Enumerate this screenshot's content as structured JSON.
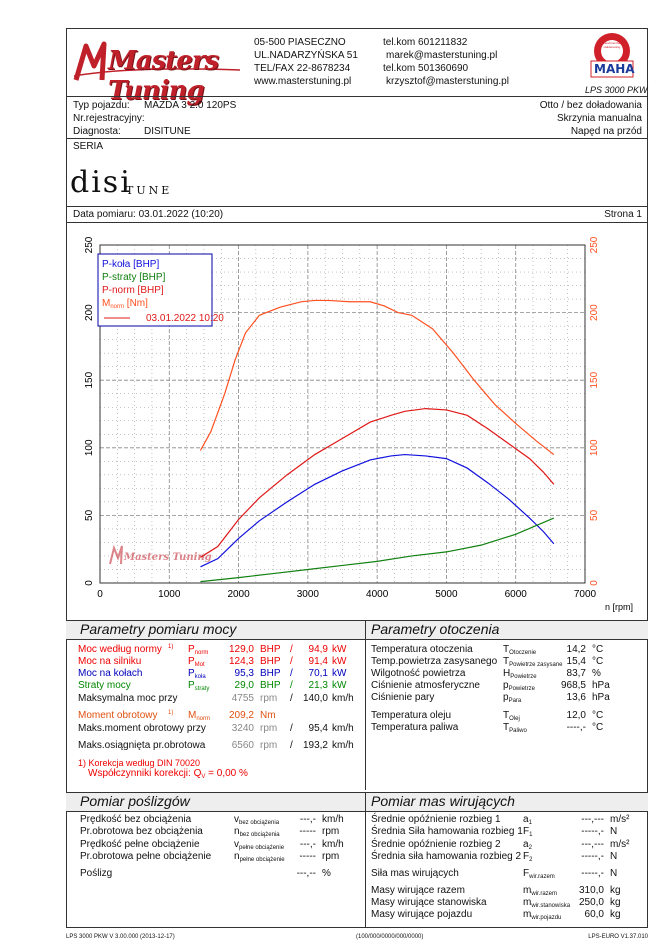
{
  "header": {
    "company_logo": "Masters Tuning",
    "address_line1": "05-500 PIASECZNO",
    "address_line2": "UL.NADARZYŃSKA 51",
    "address_line3": "TEL/FAX 22-8678234",
    "address_line4": "www.masterstuning.pl",
    "contact_line1": "tel.kom 601211832",
    "contact_line2": "marek@masterstuning.pl",
    "contact_line3": "tel.kom 501360690",
    "contact_line4": "krzysztof@masterstuning.pl",
    "maha_logo_text": "MAHA",
    "maha_ring_text": "Maschinenbau Haldenwang",
    "model": "LPS 3000 PKW"
  },
  "vehicle": {
    "type_label": "Typ pojazdu:",
    "type_value": "MAZDA 3 2.0 120PS",
    "reg_label": "Nr.rejestracyjny:",
    "reg_value": "",
    "diag_label": "Diagnosta:",
    "diag_value": "DISITUNE",
    "charging": "Otto / bez doładowania",
    "gearbox": "Skrzynia manualna",
    "drive": "Napęd na przód"
  },
  "seria_label": "SERIA",
  "disi_logo_main": "disi",
  "disi_logo_sub": "TUNE",
  "measure_date": "Data pomiaru: 03.01.2022 (10:20)",
  "page_label": "Strona 1",
  "chart_data": {
    "type": "line",
    "xlabel": "n [rpm]",
    "xlim": [
      0,
      7000
    ],
    "ylim": [
      0,
      250
    ],
    "x_ticks": [
      "0",
      "1000",
      "2000",
      "3000",
      "4000",
      "5000",
      "6000",
      "7000"
    ],
    "y_ticks_left": [
      "0",
      "50",
      "100",
      "150",
      "200",
      "250"
    ],
    "y_ticks_right": [
      "0",
      "50",
      "100",
      "150",
      "200",
      "250"
    ],
    "legend": [
      "P-koła [BHP]",
      "P-straty [BHP]",
      "P-norm [BHP]",
      "M",
      "norm",
      " [Nm]",
      "03.01.2022 10:20"
    ],
    "legend_position": "top-left",
    "grid": true,
    "colors": {
      "p_kola": "#1010dd",
      "p_straty": "#108010",
      "p_norm": "#e01818",
      "m_norm": "#ff5020"
    },
    "series": [
      {
        "name": "P-koła [BHP]",
        "x": [
          1450,
          1700,
          2000,
          2300,
          2700,
          3100,
          3500,
          3900,
          4200,
          4400,
          4700,
          5000,
          5300,
          5600,
          5900,
          6200,
          6400,
          6550
        ],
        "y": [
          12,
          18,
          33,
          46,
          60,
          73,
          83,
          91,
          94,
          95,
          94,
          92,
          85,
          74,
          62,
          48,
          38,
          29
        ]
      },
      {
        "name": "P-straty [BHP]",
        "x": [
          1450,
          2000,
          2500,
          3000,
          3500,
          4000,
          4500,
          5000,
          5500,
          6000,
          6550
        ],
        "y": [
          1,
          4,
          7,
          10,
          13,
          16,
          20,
          23,
          28,
          36,
          48
        ]
      },
      {
        "name": "P-norm [BHP]",
        "x": [
          1450,
          1700,
          2000,
          2300,
          2700,
          3100,
          3500,
          3900,
          4200,
          4400,
          4700,
          5000,
          5300,
          5600,
          5900,
          6200,
          6400,
          6550
        ],
        "y": [
          19,
          27,
          47,
          63,
          80,
          95,
          107,
          119,
          124,
          127,
          129,
          128,
          124,
          114,
          103,
          92,
          82,
          73
        ]
      },
      {
        "name": "M norm [Nm]",
        "x": [
          1450,
          1600,
          1800,
          1950,
          2100,
          2300,
          2600,
          2900,
          3100,
          3300,
          3600,
          3900,
          4100,
          4300,
          4500,
          4800,
          5100,
          5400,
          5700,
          6000,
          6300,
          6550
        ],
        "y": [
          98,
          112,
          140,
          165,
          185,
          198,
          204,
          208,
          209,
          209,
          208,
          208,
          205,
          200,
          198,
          188,
          170,
          150,
          132,
          118,
          105,
          95
        ]
      }
    ]
  },
  "params_title": "Parametry pomiaru mocy",
  "ambient_title": "Parametry otoczenia",
  "params": {
    "r1_label": "Moc według normy",
    "r1_sup": "1)",
    "r1_sym": "P",
    "r1_sub": "norm",
    "r1_v1": "129,0",
    "r1_u1": "BHP",
    "r1_sep": "/",
    "r1_v2": "94,9",
    "r1_u2": "kW",
    "r2_label": "Moc na silniku",
    "r2_sym": "P",
    "r2_sub": "Mot",
    "r2_v1": "124,3",
    "r2_u1": "BHP",
    "r2_sep": "/",
    "r2_v2": "91,4",
    "r2_u2": "kW",
    "r3_label": "Moc na kołach",
    "r3_sym": "P",
    "r3_sub": "koła",
    "r3_v1": "95,3",
    "r3_u1": "BHP",
    "r3_sep": "/",
    "r3_v2": "70,1",
    "r3_u2": "kW",
    "r4_label": "Straty mocy",
    "r4_sym": "P",
    "r4_sub": "straty",
    "r4_v1": "29,0",
    "r4_u1": "BHP",
    "r4_sep": "/",
    "r4_v2": "21,3",
    "r4_u2": "kW",
    "r5_label": "Maksymalna moc przy",
    "r5_v1": "4755",
    "r5_u1": "rpm",
    "r5_sep": "/",
    "r5_v2": "140,0",
    "r5_u2": "km/h",
    "r6_label": "Moment obrotowy",
    "r6_sup": "1)",
    "r6_sym": "M",
    "r6_sub": "norm",
    "r6_v1": "209,2",
    "r6_u1": "Nm",
    "r7_label": "Maks.moment obrotowy przy",
    "r7_v1": "3240",
    "r7_u1": "rpm",
    "r7_sep": "/",
    "r7_v2": "95,4",
    "r7_u2": "km/h",
    "r8_label": "Maks.osiągnięta pr.obrotowa",
    "r8_v1": "6560",
    "r8_u1": "rpm",
    "r8_sep": "/",
    "r8_v2": "193,2",
    "r8_u2": "km/h",
    "note1": "1) Korekcja według DIN 70020",
    "note2": "Współczynniki korekcji: Q",
    "note2_sub": "V",
    "note2_val": "=   0,00 %"
  },
  "ambient": {
    "a1_label": "Temperatura otoczenia",
    "a1_sym": "T",
    "a1_sub": "Otoczenie",
    "a1_val": "14,2",
    "a1_unit": "°C",
    "a2_label": "Temp.powietrza zasysanego",
    "a2_sym": "T",
    "a2_sub": "Powietrze zasysane",
    "a2_val": "15,4",
    "a2_unit": "°C",
    "a3_label": "Wilgotność powietrza",
    "a3_sym": "H",
    "a3_sub": "Powietrze",
    "a3_val": "83,7",
    "a3_unit": "%",
    "a4_label": "Ciśnienie atmosferyczne",
    "a4_sym": "p",
    "a4_sub": "Powietrze",
    "a4_val": "968,5",
    "a4_unit": "hPa",
    "a5_label": "Ciśnienie pary",
    "a5_sym": "p",
    "a5_sub": "Para",
    "a5_val": "13,6",
    "a5_unit": "hPa",
    "a6_label": "Temperatura oleju",
    "a6_sym": "T",
    "a6_sub": "Olej",
    "a6_val": "12,0",
    "a6_unit": "°C",
    "a7_label": "Temperatura paliwa",
    "a7_sym": "T",
    "a7_sub": "Paliwo",
    "a7_val": "----,-",
    "a7_unit": "°C"
  },
  "slip_title": "Pomiar poślizgów",
  "mass_title": "Pomiar mas wirujących",
  "slip": {
    "s1_label": "Prędkość bez obciążenia",
    "s1_sym": "v",
    "s1_sub": "bez obciążenia",
    "s1_val": "---,-",
    "s1_unit": "km/h",
    "s2_label": "Pr.obrotowa bez obciążenia",
    "s2_sym": "n",
    "s2_sub": "bez obciążenia",
    "s2_val": "-----",
    "s2_unit": "rpm",
    "s3_label": "Prędkość pełne obciążenie",
    "s3_sym": "v",
    "s3_sub": "pełne obciążenie",
    "s3_val": "---,-",
    "s3_unit": "km/h",
    "s4_label": "Pr.obrotowa pełne obciążenie",
    "s4_sym": "n",
    "s4_sub": "pełne obciążenie",
    "s4_val": "-----",
    "s4_unit": "rpm",
    "s5_label": "Poślizg",
    "s5_val": "---,--",
    "s5_unit": "%"
  },
  "mass": {
    "m1_label": "Średnie opóźnienie rozbieg 1",
    "m1_sym": "a",
    "m1_sub": "1",
    "m1_val": "---,---",
    "m1_unit": "m/s²",
    "m2_label": "Średnia Siła hamowania rozbieg 1",
    "m2_sym": "F",
    "m2_sub": "1",
    "m2_val": "-----,-",
    "m2_unit": "N",
    "m3_label": "Średnie opóźnienie rozbieg 2",
    "m3_sym": "a",
    "m3_sub": "2",
    "m3_val": "---,---",
    "m3_unit": "m/s²",
    "m4_label": "Średnia siła hamowania rozbieg 2",
    "m4_sym": "F",
    "m4_sub": "2",
    "m4_val": "-----,-",
    "m4_unit": "N",
    "m5_label": "Siła mas wirujących",
    "m5_sym": "F",
    "m5_sub": "wir.razem",
    "m5_val": "-----,-",
    "m5_unit": "N",
    "m6_label": "Masy wirujące razem",
    "m6_sym": "m",
    "m6_sub": "wir.razem",
    "m6_val": "310,0",
    "m6_unit": "kg",
    "m7_label": "Masy wirujące stanowiska",
    "m7_sym": "m",
    "m7_sub": "wir.stanowiska",
    "m7_val": "250,0",
    "m7_unit": "kg",
    "m8_label": "Masy wirujące pojazdu",
    "m8_sym": "m",
    "m8_sub": "wir.pojazdu",
    "m8_val": "60,0",
    "m8_unit": "kg"
  },
  "footer": {
    "left": "LPS 3000 PKW V 3.00.000 (2013-12-17)",
    "center": "(100/000/0000/000/0000)",
    "right": "LPS-EURO V1.37.010"
  }
}
